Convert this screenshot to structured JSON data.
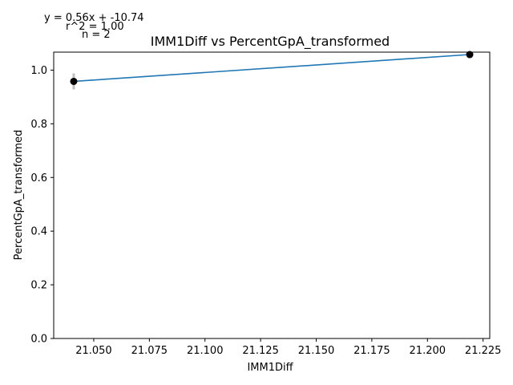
{
  "chart_data": {
    "type": "scatter",
    "title": "IMM1Diff vs PercentGpA_transformed",
    "xlabel": "IMM1Diff",
    "ylabel": "PercentGpA_transformed",
    "xlim": [
      21.032,
      21.228
    ],
    "ylim": [
      0.0,
      1.067
    ],
    "x_ticks": [
      21.05,
      21.075,
      21.1,
      21.125,
      21.15,
      21.175,
      21.2,
      21.225
    ],
    "x_tick_labels": [
      "21.050",
      "21.075",
      "21.100",
      "21.125",
      "21.150",
      "21.175",
      "21.200",
      "21.225"
    ],
    "y_ticks": [
      0.0,
      0.2,
      0.4,
      0.6,
      0.8,
      1.0
    ],
    "y_tick_labels": [
      "0.0",
      "0.2",
      "0.4",
      "0.6",
      "0.8",
      "1.0"
    ],
    "points": [
      {
        "x": 21.041,
        "y": 0.958,
        "err": 0.03
      },
      {
        "x": 21.219,
        "y": 1.058,
        "err": 0.005
      }
    ],
    "fit_line": {
      "x": [
        21.041,
        21.219
      ],
      "y": [
        0.958,
        1.058
      ],
      "color": "#1f77b4"
    },
    "point_color": "#000000",
    "errorbar_color": "#c0c0c0",
    "annotations": {
      "equation": "y = 0.56x + -10.74",
      "r2": "r^2 = 1.00",
      "n": "n = 2"
    }
  }
}
